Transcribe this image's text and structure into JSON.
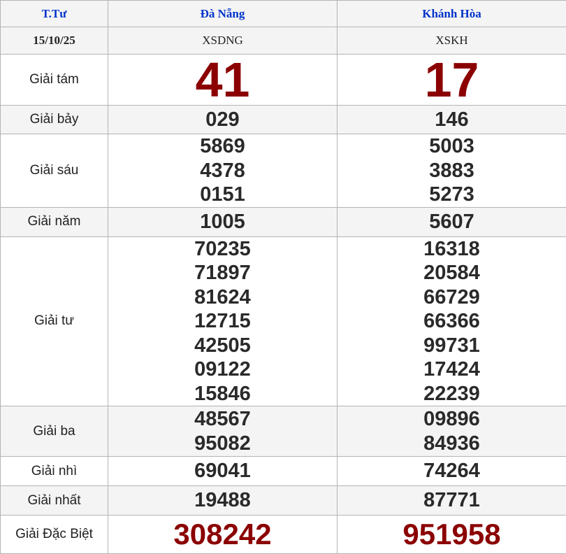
{
  "header": {
    "day": "T.Tư",
    "provinces": [
      "Đà Nẵng",
      "Khánh Hòa"
    ]
  },
  "subheader": {
    "date": "15/10/25",
    "codes": [
      "XSDNG",
      "XSKH"
    ]
  },
  "colors": {
    "header_text": "#0033cc",
    "highlight_number": "#8b0000",
    "number": "#2a2a2a",
    "alt_row": "#f4f4f4"
  },
  "prizes": [
    {
      "label": "Giải tám",
      "style": "big",
      "gray": false,
      "results": [
        [
          "41"
        ],
        [
          "17"
        ]
      ]
    },
    {
      "label": "Giải bảy",
      "style": "normal",
      "gray": true,
      "results": [
        [
          "029"
        ],
        [
          "146"
        ]
      ]
    },
    {
      "label": "Giải sáu",
      "style": "normal",
      "gray": false,
      "results": [
        [
          "5869",
          "4378",
          "0151"
        ],
        [
          "5003",
          "3883",
          "5273"
        ]
      ]
    },
    {
      "label": "Giải năm",
      "style": "normal",
      "gray": true,
      "results": [
        [
          "1005"
        ],
        [
          "5607"
        ]
      ]
    },
    {
      "label": "Giải tư",
      "style": "normal",
      "gray": false,
      "results": [
        [
          "70235",
          "71897",
          "81624",
          "12715",
          "42505",
          "09122",
          "15846"
        ],
        [
          "16318",
          "20584",
          "66729",
          "66366",
          "99731",
          "17424",
          "22239"
        ]
      ]
    },
    {
      "label": "Giải ba",
      "style": "normal",
      "gray": true,
      "results": [
        [
          "48567",
          "95082"
        ],
        [
          "09896",
          "84936"
        ]
      ]
    },
    {
      "label": "Giải nhì",
      "style": "normal",
      "gray": false,
      "results": [
        [
          "69041"
        ],
        [
          "74264"
        ]
      ]
    },
    {
      "label": "Giải nhất",
      "style": "normal",
      "gray": true,
      "results": [
        [
          "19488"
        ],
        [
          "87771"
        ]
      ]
    },
    {
      "label": "Giải Đặc Biệt",
      "style": "db",
      "gray": false,
      "results": [
        [
          "308242"
        ],
        [
          "951958"
        ]
      ]
    }
  ]
}
